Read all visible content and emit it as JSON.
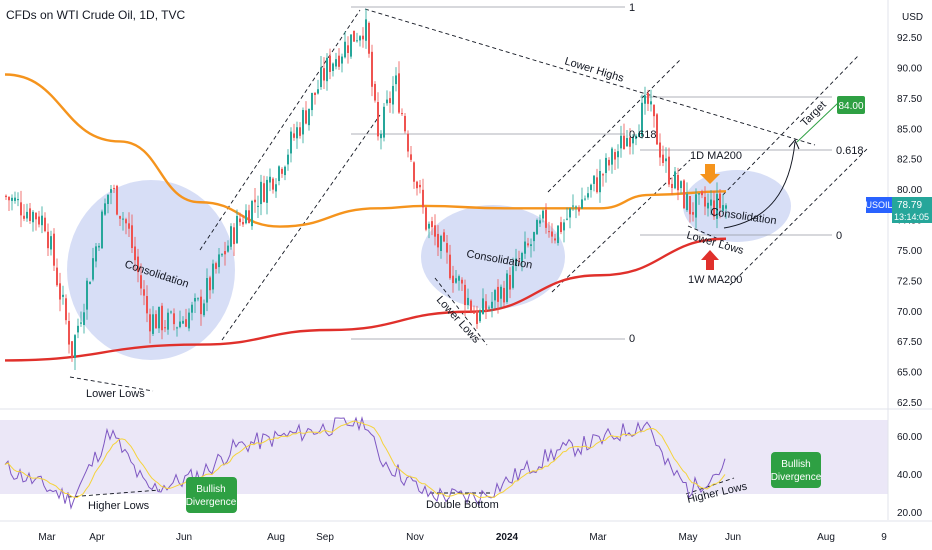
{
  "header": {
    "title": "CFDs on WTI Crude Oil, 1D, TVC"
  },
  "currency": "USD",
  "colors": {
    "up": "#26a69a",
    "down": "#ef5350",
    "ma1d": "#f5941d",
    "ma1w": "#e0302b",
    "rsi": "#7e57c2",
    "rsi_ma": "#f5d33b",
    "ellipse": "#c9d3f3",
    "green_box": "#2ea043",
    "symbol_badge": "#2962ff"
  },
  "price_axis": {
    "ticks": [
      "92.50",
      "90.00",
      "87.50",
      "85.00",
      "82.50",
      "80.00",
      "77.50",
      "75.00",
      "72.50",
      "70.00",
      "67.50",
      "65.00",
      "62.50"
    ],
    "tick_values": [
      92.5,
      90,
      87.5,
      85,
      82.5,
      80,
      77.5,
      75,
      72.5,
      70,
      67.5,
      65,
      62.5
    ],
    "symbol_badge": "USOIL",
    "last_price": "78.79",
    "countdown": "13:14:05",
    "target_badge": "84.00"
  },
  "rsi_axis": {
    "ticks": [
      "60.00",
      "40.00",
      "20.00"
    ],
    "tick_values": [
      60,
      40,
      20
    ]
  },
  "time_axis": {
    "labels": [
      "Mar",
      "Apr",
      "Jun",
      "Aug",
      "Sep",
      "Nov",
      "2024",
      "Mar",
      "May",
      "Jun",
      "Aug",
      "9"
    ]
  },
  "annotations": {
    "consolidation_1": "Consolidation",
    "consolidation_2": "Consolidation",
    "consolidation_3": "Consolidation",
    "lower_lows_1": "Lower Lows",
    "lower_lows_2": "Lower Lows",
    "lower_lows_3": "Lower Lows",
    "lower_highs": "Lower Highs",
    "target": "Target",
    "ma_1d": "1D MA200",
    "ma_1w": "1W MA200",
    "fib_1": "1",
    "fib_0618_a": "0.618",
    "fib_0618_b": "0.618",
    "fib_0_a": "0",
    "fib_0_b": "0",
    "higher_lows_1": "Higher Lows",
    "higher_lows_2": "Higher Lows",
    "double_bottom": "Double Bottom",
    "bullish_divergence_1": "Bullish\nDivergence",
    "bullish_divergence_2": "Bullish\nDivergence"
  },
  "chart_data": [
    {
      "type": "candlestick",
      "title": "CFDs on WTI Crude Oil, 1D, TVC",
      "ylim": [
        62.5,
        93.5
      ],
      "x_labels": [
        "Mar",
        "Apr",
        "Jun",
        "Aug",
        "Sep",
        "Nov",
        "2024",
        "Mar",
        "May",
        "Jun",
        "Aug",
        "9"
      ],
      "close_path": [
        {
          "t": "2023-02",
          "close": 79.5
        },
        {
          "t": "2023-03-start",
          "close": 77.5
        },
        {
          "t": "2023-03-mid",
          "close": 66.8
        },
        {
          "t": "2023-04-start",
          "close": 80.4
        },
        {
          "t": "2023-04-end",
          "close": 76.8
        },
        {
          "t": "2023-05-start",
          "close": 69.5
        },
        {
          "t": "2023-05-end",
          "close": 69.0
        },
        {
          "t": "2023-06",
          "close": 70.5
        },
        {
          "t": "2023-07",
          "close": 77.0
        },
        {
          "t": "2023-08",
          "close": 82.0
        },
        {
          "t": "2023-09",
          "close": 90.5
        },
        {
          "t": "2023-09-end",
          "close": 93.7
        },
        {
          "t": "2023-10",
          "close": 84.0
        },
        {
          "t": "2023-10-mid",
          "close": 89.0
        },
        {
          "t": "2023-11",
          "close": 77.5
        },
        {
          "t": "2023-12-mid",
          "close": 69.5
        },
        {
          "t": "2024-01",
          "close": 72.0
        },
        {
          "t": "2024-01-end",
          "close": 77.5
        },
        {
          "t": "2024-02",
          "close": 76.5
        },
        {
          "t": "2024-03",
          "close": 81.0
        },
        {
          "t": "2024-04-mid",
          "close": 87.0
        },
        {
          "t": "2024-04-end",
          "close": 82.0
        },
        {
          "t": "2024-05",
          "close": 78.5
        },
        {
          "t": "2024-05-end",
          "close": 78.79
        }
      ],
      "series": [
        {
          "name": "1D MA200",
          "points": [
            {
              "t": "2023-02",
              "v": 89.5
            },
            {
              "t": "2023-04",
              "v": 84.0
            },
            {
              "t": "2023-06",
              "v": 79.0
            },
            {
              "t": "2023-08",
              "v": 77.0
            },
            {
              "t": "2023-10",
              "v": 78.5
            },
            {
              "t": "2023-11",
              "v": 78.7
            },
            {
              "t": "2024-01",
              "v": 78.5
            },
            {
              "t": "2024-03",
              "v": 78.5
            },
            {
              "t": "2024-04",
              "v": 79.6
            },
            {
              "t": "2024-05-end",
              "v": 79.9
            }
          ]
        },
        {
          "name": "1W MA200",
          "points": [
            {
              "t": "2023-02",
              "v": 66.0
            },
            {
              "t": "2023-06",
              "v": 67.3
            },
            {
              "t": "2023-09",
              "v": 68.5
            },
            {
              "t": "2023-12",
              "v": 70.0
            },
            {
              "t": "2024-03",
              "v": 73.0
            },
            {
              "t": "2024-05-end",
              "v": 76.0
            }
          ]
        }
      ],
      "fibonacci": [
        {
          "label": "1",
          "value": 93.4
        },
        {
          "label": "0.618",
          "value": 85.0
        },
        {
          "label": "0",
          "value": 68.0
        },
        {
          "label": "0.618",
          "value": 83.5
        },
        {
          "label": "0",
          "value": 77.0
        }
      ],
      "target": 84.0
    },
    {
      "type": "line",
      "title": "RSI",
      "ylim": [
        14,
        68
      ],
      "series": [
        {
          "name": "RSI"
        },
        {
          "name": "RSI MA"
        }
      ],
      "rsi_path": [
        {
          "t": "2023-02",
          "v": 44
        },
        {
          "t": "2023-03-mid",
          "v": 27
        },
        {
          "t": "2023-04-start",
          "v": 63
        },
        {
          "t": "2023-05-start",
          "v": 32
        },
        {
          "t": "2023-06",
          "v": 40
        },
        {
          "t": "2023-07",
          "v": 55
        },
        {
          "t": "2023-08",
          "v": 60
        },
        {
          "t": "2023-09-end",
          "v": 69
        },
        {
          "t": "2023-10",
          "v": 50
        },
        {
          "t": "2023-11",
          "v": 30
        },
        {
          "t": "2023-12-mid",
          "v": 28
        },
        {
          "t": "2024-01",
          "v": 36
        },
        {
          "t": "2024-02",
          "v": 52
        },
        {
          "t": "2024-03",
          "v": 58
        },
        {
          "t": "2024-04-mid",
          "v": 68
        },
        {
          "t": "2024-04-end",
          "v": 46
        },
        {
          "t": "2024-05",
          "v": 32
        },
        {
          "t": "2024-05-end",
          "v": 45
        }
      ]
    }
  ]
}
